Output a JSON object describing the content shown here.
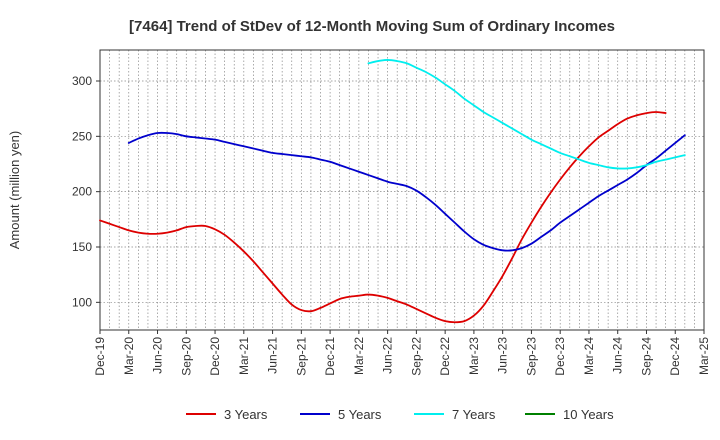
{
  "chart_data": {
    "type": "line",
    "title": "[7464]  Trend of StDev of 12-Month Moving Sum of Ordinary Incomes",
    "xlabel": "",
    "ylabel": "Amount (million yen)",
    "x_tick_labels": [
      "Dec-19",
      "Mar-20",
      "Jun-20",
      "Sep-20",
      "Dec-20",
      "Mar-21",
      "Jun-21",
      "Sep-21",
      "Dec-21",
      "Mar-22",
      "Jun-22",
      "Sep-22",
      "Dec-22",
      "Mar-23",
      "Jun-23",
      "Sep-23",
      "Dec-23",
      "Mar-24",
      "Jun-24",
      "Sep-24",
      "Dec-24",
      "Mar-25"
    ],
    "y_ticks": [
      100,
      150,
      200,
      250,
      300
    ],
    "ylim": [
      75,
      328
    ],
    "grid": true,
    "legend_position": "bottom",
    "colors": {
      "3 Years": "#dd0000",
      "5 Years": "#0000cc",
      "7 Years": "#00eeee",
      "10 Years": "#008000"
    },
    "series": [
      {
        "name": "3 Years",
        "points": [
          [
            "Dec-19",
            174
          ],
          [
            "Jan-20",
            171
          ],
          [
            "Feb-20",
            168
          ],
          [
            "Mar-20",
            165
          ],
          [
            "Apr-20",
            163
          ],
          [
            "May-20",
            162
          ],
          [
            "Jun-20",
            162
          ],
          [
            "Jul-20",
            163
          ],
          [
            "Aug-20",
            165
          ],
          [
            "Sep-20",
            168
          ],
          [
            "Oct-20",
            169
          ],
          [
            "Nov-20",
            169
          ],
          [
            "Dec-20",
            166
          ],
          [
            "Jan-21",
            161
          ],
          [
            "Feb-21",
            154
          ],
          [
            "Mar-21",
            146
          ],
          [
            "Apr-21",
            137
          ],
          [
            "May-21",
            127
          ],
          [
            "Jun-21",
            117
          ],
          [
            "Jul-21",
            107
          ],
          [
            "Aug-21",
            98
          ],
          [
            "Sep-21",
            93
          ],
          [
            "Oct-21",
            92
          ],
          [
            "Nov-21",
            95
          ],
          [
            "Dec-21",
            99
          ],
          [
            "Jan-22",
            103
          ],
          [
            "Feb-22",
            105
          ],
          [
            "Mar-22",
            106
          ],
          [
            "Apr-22",
            107
          ],
          [
            "May-22",
            106
          ],
          [
            "Jun-22",
            104
          ],
          [
            "Jul-22",
            101
          ],
          [
            "Aug-22",
            98
          ],
          [
            "Sep-22",
            94
          ],
          [
            "Oct-22",
            90
          ],
          [
            "Nov-22",
            86
          ],
          [
            "Dec-22",
            83
          ],
          [
            "Jan-23",
            82
          ],
          [
            "Feb-23",
            83
          ],
          [
            "Mar-23",
            88
          ],
          [
            "Apr-23",
            97
          ],
          [
            "May-23",
            110
          ],
          [
            "Jun-23",
            124
          ],
          [
            "Jul-23",
            140
          ],
          [
            "Aug-23",
            157
          ],
          [
            "Sep-23",
            172
          ],
          [
            "Oct-23",
            186
          ],
          [
            "Nov-23",
            199
          ],
          [
            "Dec-23",
            211
          ],
          [
            "Jan-24",
            222
          ],
          [
            "Feb-24",
            232
          ],
          [
            "Mar-24",
            241
          ],
          [
            "Apr-24",
            249
          ],
          [
            "May-24",
            255
          ],
          [
            "Jun-24",
            261
          ],
          [
            "Jul-24",
            266
          ],
          [
            "Aug-24",
            269
          ],
          [
            "Sep-24",
            271
          ],
          [
            "Oct-24",
            272
          ],
          [
            "Nov-24",
            271
          ]
        ]
      },
      {
        "name": "5 Years",
        "points": [
          [
            "Mar-20",
            244
          ],
          [
            "Apr-20",
            248
          ],
          [
            "May-20",
            251
          ],
          [
            "Jun-20",
            253
          ],
          [
            "Jul-20",
            253
          ],
          [
            "Aug-20",
            252
          ],
          [
            "Sep-20",
            250
          ],
          [
            "Oct-20",
            249
          ],
          [
            "Nov-20",
            248
          ],
          [
            "Dec-20",
            247
          ],
          [
            "Jan-21",
            245
          ],
          [
            "Feb-21",
            243
          ],
          [
            "Mar-21",
            241
          ],
          [
            "Apr-21",
            239
          ],
          [
            "May-21",
            237
          ],
          [
            "Jun-21",
            235
          ],
          [
            "Jul-21",
            234
          ],
          [
            "Aug-21",
            233
          ],
          [
            "Sep-21",
            232
          ],
          [
            "Oct-21",
            231
          ],
          [
            "Nov-21",
            229
          ],
          [
            "Dec-21",
            227
          ],
          [
            "Jan-22",
            224
          ],
          [
            "Feb-22",
            221
          ],
          [
            "Mar-22",
            218
          ],
          [
            "Apr-22",
            215
          ],
          [
            "May-22",
            212
          ],
          [
            "Jun-22",
            209
          ],
          [
            "Jul-22",
            207
          ],
          [
            "Aug-22",
            205
          ],
          [
            "Sep-22",
            201
          ],
          [
            "Oct-22",
            195
          ],
          [
            "Nov-22",
            188
          ],
          [
            "Dec-22",
            180
          ],
          [
            "Jan-23",
            172
          ],
          [
            "Feb-23",
            164
          ],
          [
            "Mar-23",
            157
          ],
          [
            "Apr-23",
            152
          ],
          [
            "May-23",
            149
          ],
          [
            "Jun-23",
            147
          ],
          [
            "Jul-23",
            147
          ],
          [
            "Aug-23",
            149
          ],
          [
            "Sep-23",
            153
          ],
          [
            "Oct-23",
            159
          ],
          [
            "Nov-23",
            165
          ],
          [
            "Dec-23",
            172
          ],
          [
            "Jan-24",
            178
          ],
          [
            "Feb-24",
            184
          ],
          [
            "Mar-24",
            190
          ],
          [
            "Apr-24",
            196
          ],
          [
            "May-24",
            201
          ],
          [
            "Jun-24",
            206
          ],
          [
            "Jul-24",
            211
          ],
          [
            "Aug-24",
            217
          ],
          [
            "Sep-24",
            224
          ],
          [
            "Oct-24",
            230
          ],
          [
            "Nov-24",
            237
          ],
          [
            "Dec-24",
            244
          ],
          [
            "Jan-25",
            251
          ]
        ]
      },
      {
        "name": "7 Years",
        "points": [
          [
            "Apr-22",
            316
          ],
          [
            "May-22",
            318
          ],
          [
            "Jun-22",
            319
          ],
          [
            "Jul-22",
            318
          ],
          [
            "Aug-22",
            316
          ],
          [
            "Sep-22",
            312
          ],
          [
            "Oct-22",
            308
          ],
          [
            "Nov-22",
            303
          ],
          [
            "Dec-22",
            297
          ],
          [
            "Jan-23",
            291
          ],
          [
            "Feb-23",
            284
          ],
          [
            "Mar-23",
            278
          ],
          [
            "Apr-23",
            272
          ],
          [
            "May-23",
            267
          ],
          [
            "Jun-23",
            262
          ],
          [
            "Jul-23",
            257
          ],
          [
            "Aug-23",
            252
          ],
          [
            "Sep-23",
            247
          ],
          [
            "Oct-23",
            243
          ],
          [
            "Nov-23",
            239
          ],
          [
            "Dec-23",
            235
          ],
          [
            "Jan-24",
            232
          ],
          [
            "Feb-24",
            229
          ],
          [
            "Mar-24",
            226
          ],
          [
            "Apr-24",
            224
          ],
          [
            "May-24",
            222
          ],
          [
            "Jun-24",
            221
          ],
          [
            "Jul-24",
            221
          ],
          [
            "Aug-24",
            222
          ],
          [
            "Sep-24",
            224
          ],
          [
            "Oct-24",
            227
          ],
          [
            "Nov-24",
            229
          ],
          [
            "Dec-24",
            231
          ],
          [
            "Jan-25",
            233
          ]
        ]
      },
      {
        "name": "10 Years",
        "points": []
      }
    ]
  }
}
